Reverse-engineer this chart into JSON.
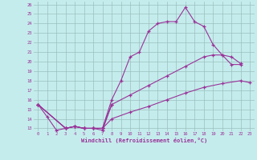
{
  "xlabel": "Windchill (Refroidissement éolien,°C)",
  "background_color": "#c5ecec",
  "line_color": "#993399",
  "grid_color": "#9bbfbf",
  "xlim": [
    -0.5,
    23.5
  ],
  "ylim": [
    12.7,
    26.3
  ],
  "yticks": [
    13,
    14,
    15,
    16,
    17,
    18,
    19,
    20,
    21,
    22,
    23,
    24,
    25,
    26
  ],
  "xticks": [
    0,
    1,
    2,
    3,
    4,
    5,
    6,
    7,
    8,
    9,
    10,
    11,
    12,
    13,
    14,
    15,
    16,
    17,
    18,
    19,
    20,
    21,
    22,
    23
  ],
  "series": [
    {
      "x": [
        0,
        1,
        2,
        3,
        4,
        5,
        6,
        7,
        8
      ],
      "y": [
        15.5,
        14.2,
        12.8,
        13.0,
        13.2,
        13.0,
        13.0,
        12.8,
        15.5
      ]
    },
    {
      "x": [
        0,
        3,
        4,
        5,
        6,
        7,
        8,
        9,
        10,
        11,
        12,
        13,
        14,
        15,
        16,
        17,
        18,
        19,
        20,
        21,
        22
      ],
      "y": [
        15.5,
        13.0,
        13.2,
        13.0,
        13.0,
        13.0,
        16.0,
        18.0,
        20.5,
        21.0,
        23.2,
        24.0,
        24.2,
        24.2,
        25.7,
        24.2,
        23.7,
        21.8,
        20.7,
        19.7,
        19.7
      ]
    },
    {
      "x": [
        0,
        3,
        4,
        5,
        6,
        7,
        8,
        10,
        12,
        14,
        16,
        18,
        19,
        20,
        21,
        22
      ],
      "y": [
        15.5,
        13.0,
        13.2,
        13.0,
        13.0,
        13.0,
        15.5,
        16.5,
        17.5,
        18.5,
        19.5,
        20.5,
        20.7,
        20.7,
        20.5,
        19.8
      ]
    },
    {
      "x": [
        0,
        3,
        4,
        5,
        6,
        7,
        8,
        10,
        12,
        14,
        16,
        18,
        20,
        22,
        23
      ],
      "y": [
        15.5,
        13.0,
        13.2,
        13.0,
        13.0,
        13.0,
        14.0,
        14.7,
        15.3,
        16.0,
        16.7,
        17.3,
        17.7,
        18.0,
        17.8
      ]
    }
  ]
}
